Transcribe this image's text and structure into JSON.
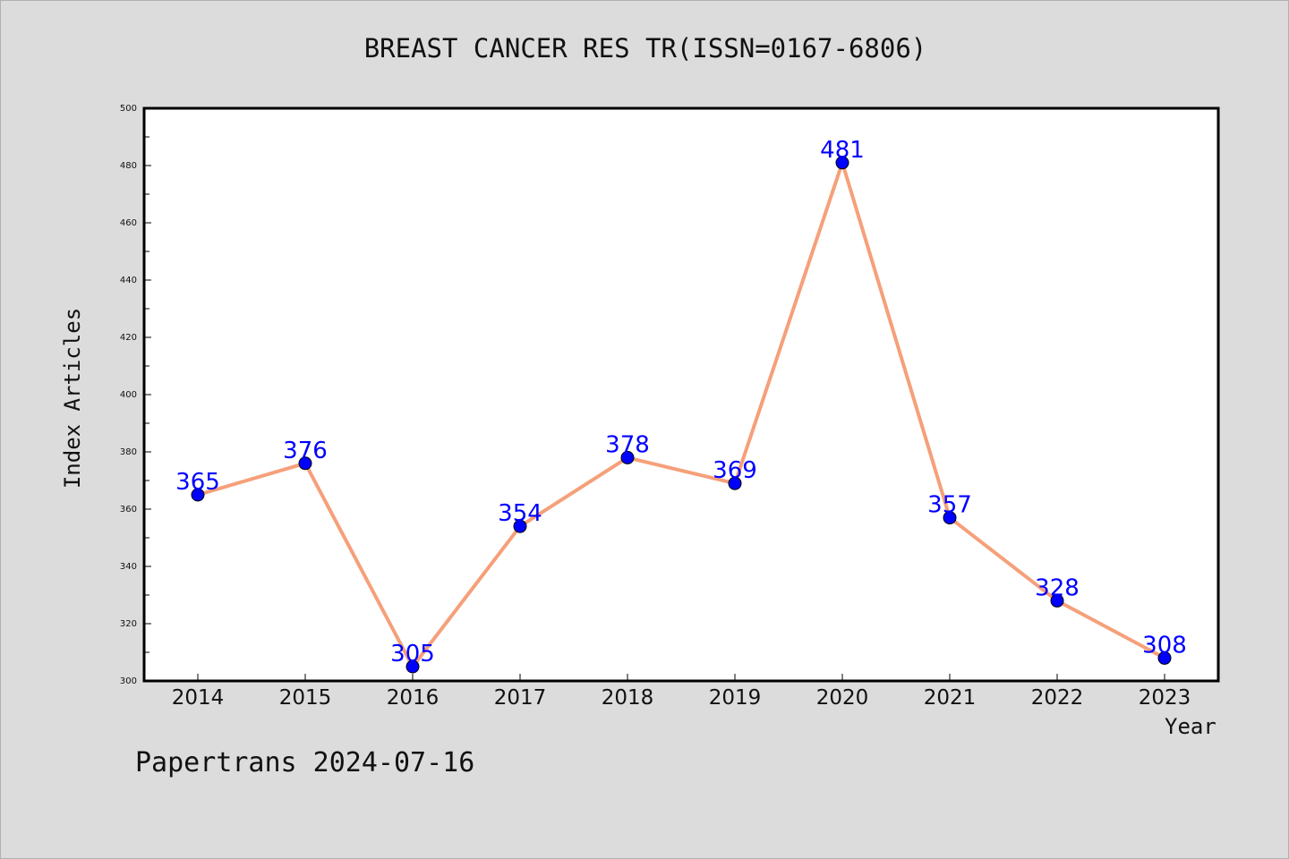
{
  "chart_data": {
    "type": "line",
    "title": "BREAST CANCER RES TR(ISSN=0167-6806)",
    "xlabel": "Year",
    "ylabel": "Index Articles",
    "categories": [
      "2014",
      "2015",
      "2016",
      "2017",
      "2018",
      "2019",
      "2020",
      "2021",
      "2022",
      "2023"
    ],
    "values": [
      365,
      376,
      305,
      354,
      378,
      369,
      481,
      357,
      328,
      308
    ],
    "ylim": [
      300,
      500
    ],
    "yticks": [
      300,
      320,
      340,
      360,
      380,
      400,
      420,
      440,
      460,
      480,
      500
    ],
    "grid": false,
    "line_color": "#f5a07a",
    "marker_color": "#0000ff",
    "label_color": "#0000ff"
  },
  "footer": {
    "text": "Papertrans 2024-07-16"
  }
}
